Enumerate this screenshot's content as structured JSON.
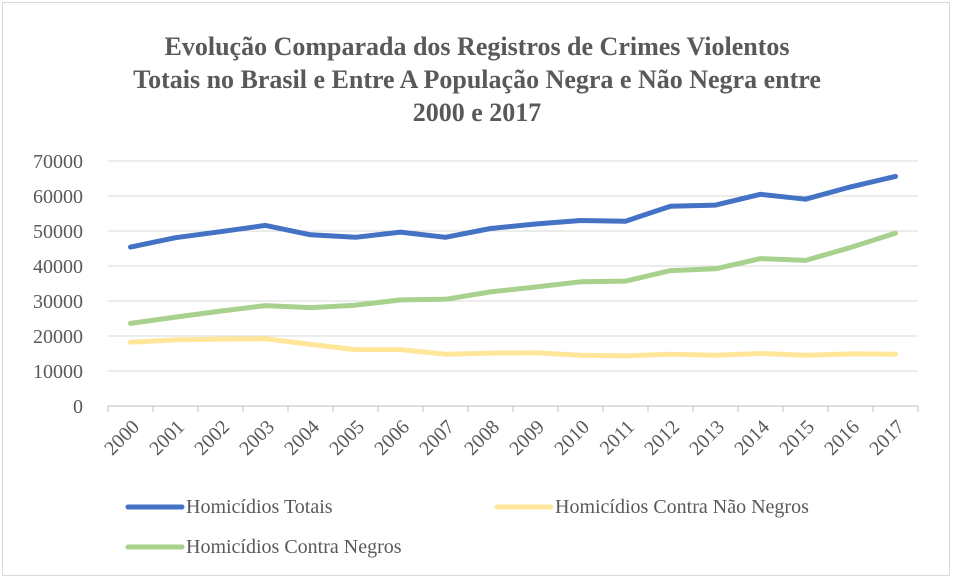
{
  "chart_data": {
    "type": "line",
    "title_lines": [
      "Evolução Comparada dos Registros de Crimes Violentos",
      "Totais no Brasil e Entre A População Negra e Não Negra entre",
      "2000 e 2017"
    ],
    "x": [
      "2000",
      "2001",
      "2002",
      "2003",
      "2004",
      "2005",
      "2006",
      "2007",
      "2008",
      "2009",
      "2010",
      "2011",
      "2012",
      "2013",
      "2014",
      "2015",
      "2016",
      "2017"
    ],
    "ylim": [
      0,
      70000
    ],
    "yticks": [
      0,
      10000,
      20000,
      30000,
      40000,
      50000,
      60000,
      70000
    ],
    "grid": true,
    "legend_position": "bottom",
    "series": [
      {
        "name": "Homicídios Totais",
        "color": "#4472C4",
        "values": [
          45400,
          48100,
          49800,
          51600,
          48900,
          48200,
          49700,
          48200,
          50700,
          52000,
          53000,
          52800,
          57100,
          57400,
          60500,
          59100,
          62600,
          65600
        ]
      },
      {
        "name": "Homicídios Contra Não Negros",
        "color": "#FFE699",
        "values": [
          18200,
          18900,
          19100,
          19200,
          17600,
          16100,
          16100,
          14800,
          15100,
          15200,
          14500,
          14300,
          14800,
          14500,
          15000,
          14500,
          14900,
          14800
        ]
      },
      {
        "name": "Homicídios Contra Negros",
        "color": "#A9D18E",
        "values": [
          23600,
          25400,
          27100,
          28700,
          28100,
          28800,
          30300,
          30500,
          32600,
          34000,
          35500,
          35700,
          38700,
          39200,
          42100,
          41600,
          45300,
          49400
        ]
      }
    ]
  }
}
